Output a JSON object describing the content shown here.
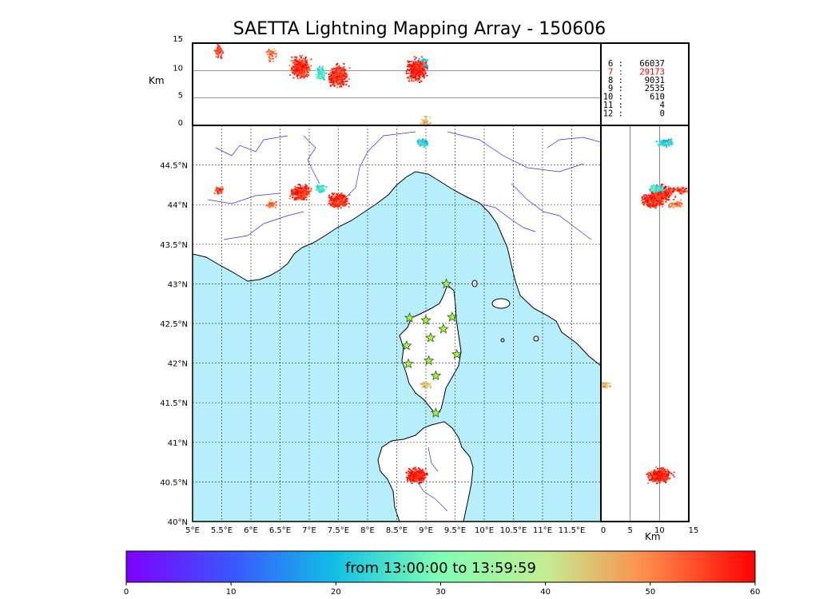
{
  "title": "SAETTA Lightning Mapping Array - 150606",
  "altitude_axis": {
    "unit_label": "Km",
    "ticks": [
      "0",
      "5",
      "10",
      "15"
    ]
  },
  "longitude_ticks": [
    "5°E",
    "5.5°E",
    "6°E",
    "6.5°E",
    "7°E",
    "7.5°E",
    "8°E",
    "8.5°E",
    "9°E",
    "9.5°E",
    "10°E",
    "10.5°E",
    "11°E",
    "11.5°E"
  ],
  "latitude_ticks": [
    "40°N",
    "40.5°N",
    "41°N",
    "41.5°N",
    "42°N",
    "42.5°N",
    "43°N",
    "43.5°N",
    "44°N",
    "44.5°N"
  ],
  "station_counts": [
    {
      "stations": "6",
      "count": "66037",
      "color": "#000000"
    },
    {
      "stations": "7",
      "count": "29173",
      "color": "#ff0000"
    },
    {
      "stations": "8",
      "count": "9031",
      "color": "#000000"
    },
    {
      "stations": "9",
      "count": "2535",
      "color": "#000000"
    },
    {
      "stations": "10",
      "count": "610",
      "color": "#000000"
    },
    {
      "stations": "11",
      "count": "4",
      "color": "#000000"
    },
    {
      "stations": "12",
      "count": "0",
      "color": "#000000"
    }
  ],
  "colorbar": {
    "label": "from 13:00:00 to 13:59:59",
    "ticks": [
      "0",
      "10",
      "20",
      "30",
      "40",
      "50",
      "60"
    ],
    "min": 0,
    "max": 60
  },
  "map_colors": {
    "sea": "#b6eefc",
    "land": "#ffffff",
    "coast": "#000000",
    "rivers": "#3333cc",
    "grid": "#444444",
    "stations": "#99ff33"
  },
  "chart_data": {
    "type": "scatter",
    "title": "SAETTA Lightning Mapping Array - 150606",
    "xlim": [
      5,
      12
    ],
    "ylim": [
      40,
      45
    ],
    "altitude_range_km": [
      0,
      15
    ],
    "color_scale_minutes": [
      0,
      60
    ],
    "stations": [
      [
        9.35,
        43.0
      ],
      [
        8.72,
        42.57
      ],
      [
        9.45,
        42.58
      ],
      [
        9.0,
        42.54
      ],
      [
        9.3,
        42.43
      ],
      [
        9.08,
        42.32
      ],
      [
        8.67,
        42.22
      ],
      [
        9.53,
        42.11
      ],
      [
        9.05,
        42.03
      ],
      [
        8.7,
        41.99
      ],
      [
        9.17,
        41.84
      ],
      [
        9.17,
        41.37
      ]
    ],
    "sources": [
      {
        "lon": 5.45,
        "lat": 44.18,
        "alt_km": 13.5,
        "minute": 55,
        "count": "small"
      },
      {
        "lon": 6.35,
        "lat": 44.0,
        "alt_km": 13.0,
        "minute": 50,
        "count": "small"
      },
      {
        "lon": 6.85,
        "lat": 44.15,
        "alt_km": 10.5,
        "minute": 57,
        "count": "large"
      },
      {
        "lon": 7.2,
        "lat": 44.2,
        "alt_km": 9.5,
        "minute": 25,
        "count": "medium"
      },
      {
        "lon": 7.5,
        "lat": 44.05,
        "alt_km": 9.0,
        "minute": 57,
        "count": "large"
      },
      {
        "lon": 8.95,
        "lat": 44.78,
        "alt_km": 11.0,
        "minute": 22,
        "count": "medium"
      },
      {
        "lon": 9.0,
        "lat": 41.72,
        "alt_km": 0.5,
        "minute": 45,
        "count": "small"
      },
      {
        "lon": 8.85,
        "lat": 40.58,
        "alt_km": 10.0,
        "minute": 58,
        "count": "large"
      }
    ]
  }
}
